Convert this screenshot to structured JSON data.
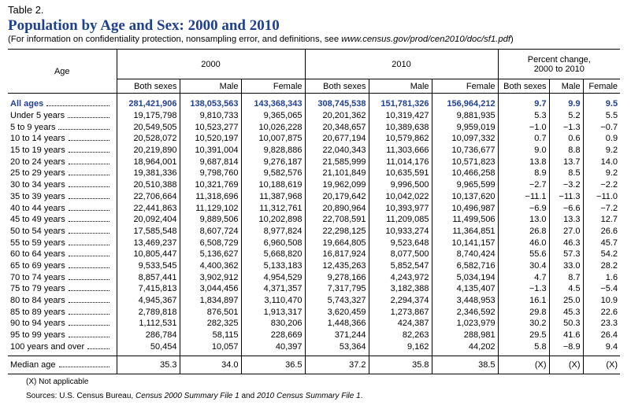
{
  "header": {
    "label": "Table 2.",
    "title": "Population by Age and Sex: 2000 and 2010",
    "note": {
      "before": "(For information on confidentiality protection, nonsampling error, and definitions, see ",
      "url": "www.census.gov/prod/cen2010/doc/sf1.pdf",
      "after": ")"
    }
  },
  "table": {
    "age_header": "Age",
    "groups": [
      {
        "lines": [
          "2000"
        ]
      },
      {
        "lines": [
          "2010"
        ]
      },
      {
        "lines": [
          "Percent change,",
          "2000 to 2010"
        ]
      }
    ],
    "subheaders": [
      "Both sexes",
      "Male",
      "Female",
      "Both sexes",
      "Male",
      "Female",
      "Both sexes",
      "Male",
      "Female"
    ],
    "rows": [
      {
        "label": "All ages",
        "cells": [
          "281,421,906",
          "138,053,563",
          "143,368,343",
          "308,745,538",
          "151,781,326",
          "156,964,212",
          "9.7",
          "9.9",
          "9.5"
        ]
      },
      {
        "label": "Under 5 years",
        "cells": [
          "19,175,798",
          "9,810,733",
          "9,365,065",
          "20,201,362",
          "10,319,427",
          "9,881,935",
          "5.3",
          "5.2",
          "5.5"
        ]
      },
      {
        "label": "5 to 9 years",
        "cells": [
          "20,549,505",
          "10,523,277",
          "10,026,228",
          "20,348,657",
          "10,389,638",
          "9,959,019",
          "−1.0",
          "−1.3",
          "−0.7"
        ]
      },
      {
        "label": "10 to 14 years",
        "cells": [
          "20,528,072",
          "10,520,197",
          "10,007,875",
          "20,677,194",
          "10,579,862",
          "10,097,332",
          "0.7",
          "0.6",
          "0.9"
        ]
      },
      {
        "label": "15 to 19 years",
        "cells": [
          "20,219,890",
          "10,391,004",
          "9,828,886",
          "22,040,343",
          "11,303,666",
          "10,736,677",
          "9.0",
          "8.8",
          "9.2"
        ]
      },
      {
        "label": "20 to 24 years",
        "cells": [
          "18,964,001",
          "9,687,814",
          "9,276,187",
          "21,585,999",
          "11,014,176",
          "10,571,823",
          "13.8",
          "13.7",
          "14.0"
        ]
      },
      {
        "label": "25 to 29 years",
        "cells": [
          "19,381,336",
          "9,798,760",
          "9,582,576",
          "21,101,849",
          "10,635,591",
          "10,466,258",
          "8.9",
          "8.5",
          "9.2"
        ]
      },
      {
        "label": "30 to 34 years",
        "cells": [
          "20,510,388",
          "10,321,769",
          "10,188,619",
          "19,962,099",
          "9,996,500",
          "9,965,599",
          "−2.7",
          "−3.2",
          "−2.2"
        ]
      },
      {
        "label": "35 to 39 years",
        "cells": [
          "22,706,664",
          "11,318,696",
          "11,387,968",
          "20,179,642",
          "10,042,022",
          "10,137,620",
          "−11.1",
          "−11.3",
          "−11.0"
        ]
      },
      {
        "label": "40 to 44 years",
        "cells": [
          "22,441,863",
          "11,129,102",
          "11,312,761",
          "20,890,964",
          "10,393,977",
          "10,496,987",
          "−6.9",
          "−6.6",
          "−7.2"
        ]
      },
      {
        "label": "45 to 49 years",
        "cells": [
          "20,092,404",
          "9,889,506",
          "10,202,898",
          "22,708,591",
          "11,209,085",
          "11,499,506",
          "13.0",
          "13.3",
          "12.7"
        ]
      },
      {
        "label": "50 to 54 years",
        "cells": [
          "17,585,548",
          "8,607,724",
          "8,977,824",
          "22,298,125",
          "10,933,274",
          "11,364,851",
          "26.8",
          "27.0",
          "26.6"
        ]
      },
      {
        "label": "55 to 59 years",
        "cells": [
          "13,469,237",
          "6,508,729",
          "6,960,508",
          "19,664,805",
          "9,523,648",
          "10,141,157",
          "46.0",
          "46.3",
          "45.7"
        ]
      },
      {
        "label": "60 to 64 years",
        "cells": [
          "10,805,447",
          "5,136,627",
          "5,668,820",
          "16,817,924",
          "8,077,500",
          "8,740,424",
          "55.6",
          "57.3",
          "54.2"
        ]
      },
      {
        "label": "65 to 69 years",
        "cells": [
          "9,533,545",
          "4,400,362",
          "5,133,183",
          "12,435,263",
          "5,852,547",
          "6,582,716",
          "30.4",
          "33.0",
          "28.2"
        ]
      },
      {
        "label": "70 to 74 years",
        "cells": [
          "8,857,441",
          "3,902,912",
          "4,954,529",
          "9,278,166",
          "4,243,972",
          "5,034,194",
          "4.7",
          "8.7",
          "1.6"
        ]
      },
      {
        "label": "75 to 79 years",
        "cells": [
          "7,415,813",
          "3,044,456",
          "4,371,357",
          "7,317,795",
          "3,182,388",
          "4,135,407",
          "−1.3",
          "4.5",
          "−5.4"
        ]
      },
      {
        "label": "80 to 84 years",
        "cells": [
          "4,945,367",
          "1,834,897",
          "3,110,470",
          "5,743,327",
          "2,294,374",
          "3,448,953",
          "16.1",
          "25.0",
          "10.9"
        ]
      },
      {
        "label": "85 to 89 years",
        "cells": [
          "2,789,818",
          "876,501",
          "1,913,317",
          "3,620,459",
          "1,273,867",
          "2,346,592",
          "29.8",
          "45.3",
          "22.6"
        ]
      },
      {
        "label": "90 to 94 years",
        "cells": [
          "1,112,531",
          "282,325",
          "830,206",
          "1,448,366",
          "424,387",
          "1,023,979",
          "30.2",
          "50.3",
          "23.3"
        ]
      },
      {
        "label": "95 to 99 years",
        "cells": [
          "286,784",
          "58,115",
          "228,669",
          "371,244",
          "82,263",
          "288,981",
          "29.5",
          "41.6",
          "26.4"
        ]
      },
      {
        "label": "100 years and over",
        "cells": [
          "50,454",
          "10,057",
          "40,397",
          "53,364",
          "9,162",
          "44,202",
          "5.8",
          "−8.9",
          "9.4"
        ]
      },
      {
        "label": "Median age",
        "cells": [
          "35.3",
          "34.0",
          "36.5",
          "37.2",
          "35.8",
          "38.5",
          "(X)",
          "(X)",
          "(X)"
        ]
      }
    ]
  },
  "footnotes": {
    "na": "(X) Not applicable",
    "sources": {
      "a": "Sources: U.S. Census Bureau, ",
      "b": "Census 2000 Summary File 1",
      "c": " and ",
      "d": "2010 Census Summary File 1",
      "e": "."
    }
  }
}
